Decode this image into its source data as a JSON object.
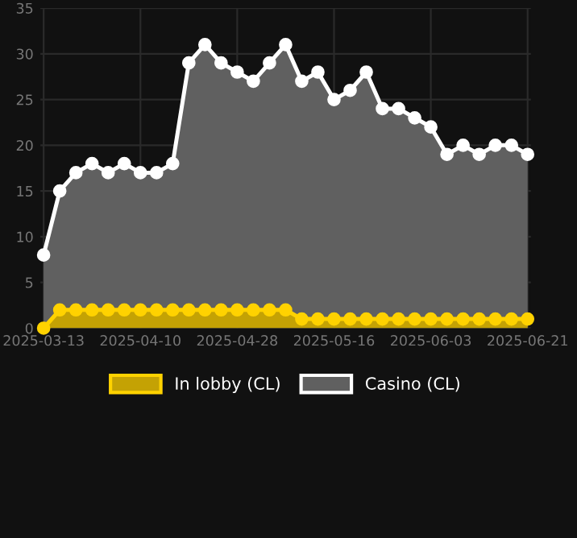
{
  "chart_data": {
    "type": "area",
    "categories": [
      "2025-03-13",
      null,
      null,
      null,
      null,
      null,
      "2025-04-10",
      null,
      null,
      null,
      null,
      null,
      "2025-04-28",
      null,
      null,
      null,
      null,
      null,
      "2025-05-16",
      null,
      null,
      null,
      null,
      null,
      "2025-06-03",
      null,
      null,
      null,
      null,
      null,
      "2025-06-21"
    ],
    "series": [
      {
        "name": "In lobby (CL)",
        "color": "#ffd200",
        "values": [
          0,
          2,
          2,
          2,
          2,
          2,
          2,
          2,
          2,
          2,
          2,
          2,
          2,
          2,
          2,
          2,
          1,
          1,
          1,
          1,
          1,
          1,
          1,
          1,
          1,
          1,
          1,
          1,
          1,
          1,
          1
        ]
      },
      {
        "name": "Casino (CL)",
        "color": "#ffffff",
        "values": [
          8,
          15,
          17,
          18,
          17,
          18,
          17,
          17,
          18,
          29,
          31,
          29,
          28,
          27,
          29,
          31,
          27,
          28,
          25,
          26,
          28,
          24,
          24,
          23,
          22,
          19,
          20,
          19,
          20,
          20,
          19
        ]
      }
    ],
    "ylim": [
      0,
      35
    ],
    "yticks": [
      0,
      5,
      10,
      15,
      20,
      25,
      30,
      35
    ],
    "grid": true,
    "legend": "bottom",
    "marker": "circle",
    "line_style": "solid"
  }
}
